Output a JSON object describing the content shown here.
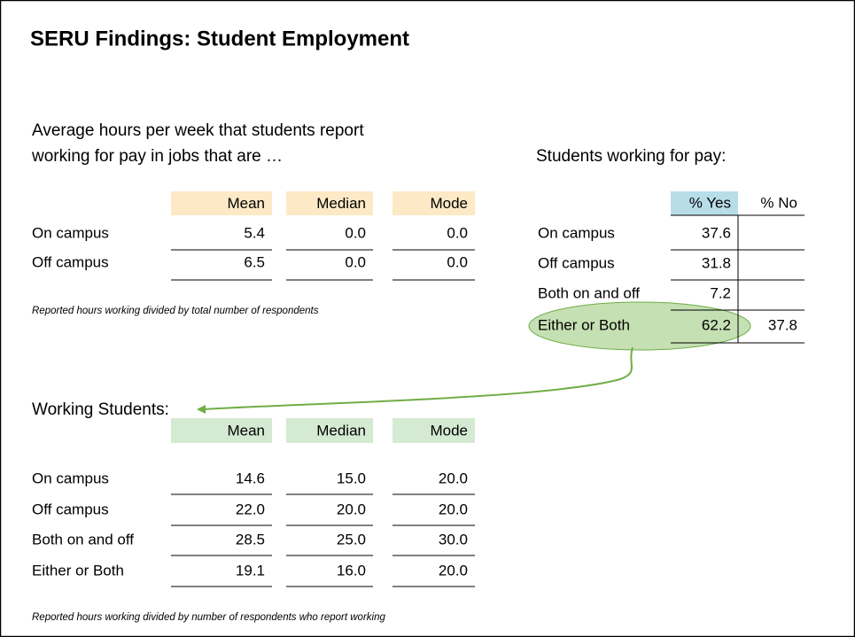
{
  "title": "SERU Findings: Student Employment",
  "all_students": {
    "caption_lines": [
      "Average hours per week that students report",
      "working for pay in jobs that are …"
    ],
    "columns": [
      "Mean",
      "Median",
      "Mode"
    ],
    "rows": [
      {
        "label": "On campus",
        "values": [
          "5.4",
          "0.0",
          "0.0"
        ]
      },
      {
        "label": "Off campus",
        "values": [
          "6.5",
          "0.0",
          "0.0"
        ]
      }
    ],
    "note": "Reported hours working divided by total number of respondents"
  },
  "working_for_pay": {
    "title": "Students working for pay:",
    "columns": [
      "% Yes",
      "% No"
    ],
    "rows": [
      {
        "label": "On campus",
        "values": [
          "37.6"
        ]
      },
      {
        "label": "Off campus",
        "values": [
          "31.8"
        ]
      },
      {
        "label": "Both on and off",
        "values": [
          "7.2"
        ]
      },
      {
        "label": "Either or Both",
        "values": [
          "62.2",
          "37.8"
        ]
      }
    ]
  },
  "working_students": {
    "title": "Working Students:",
    "columns": [
      "Mean",
      "Median",
      "Mode"
    ],
    "rows": [
      {
        "label": "On campus",
        "values": [
          "14.6",
          "15.0",
          "20.0"
        ]
      },
      {
        "label": "Off campus",
        "values": [
          "22.0",
          "20.0",
          "20.0"
        ]
      },
      {
        "label": "Both on and off",
        "values": [
          "28.5",
          "25.0",
          "30.0"
        ]
      },
      {
        "label": "Either or Both",
        "values": [
          "19.1",
          "16.0",
          "20.0"
        ]
      }
    ],
    "note": "Reported hours working divided by number of respondents who report working"
  }
}
